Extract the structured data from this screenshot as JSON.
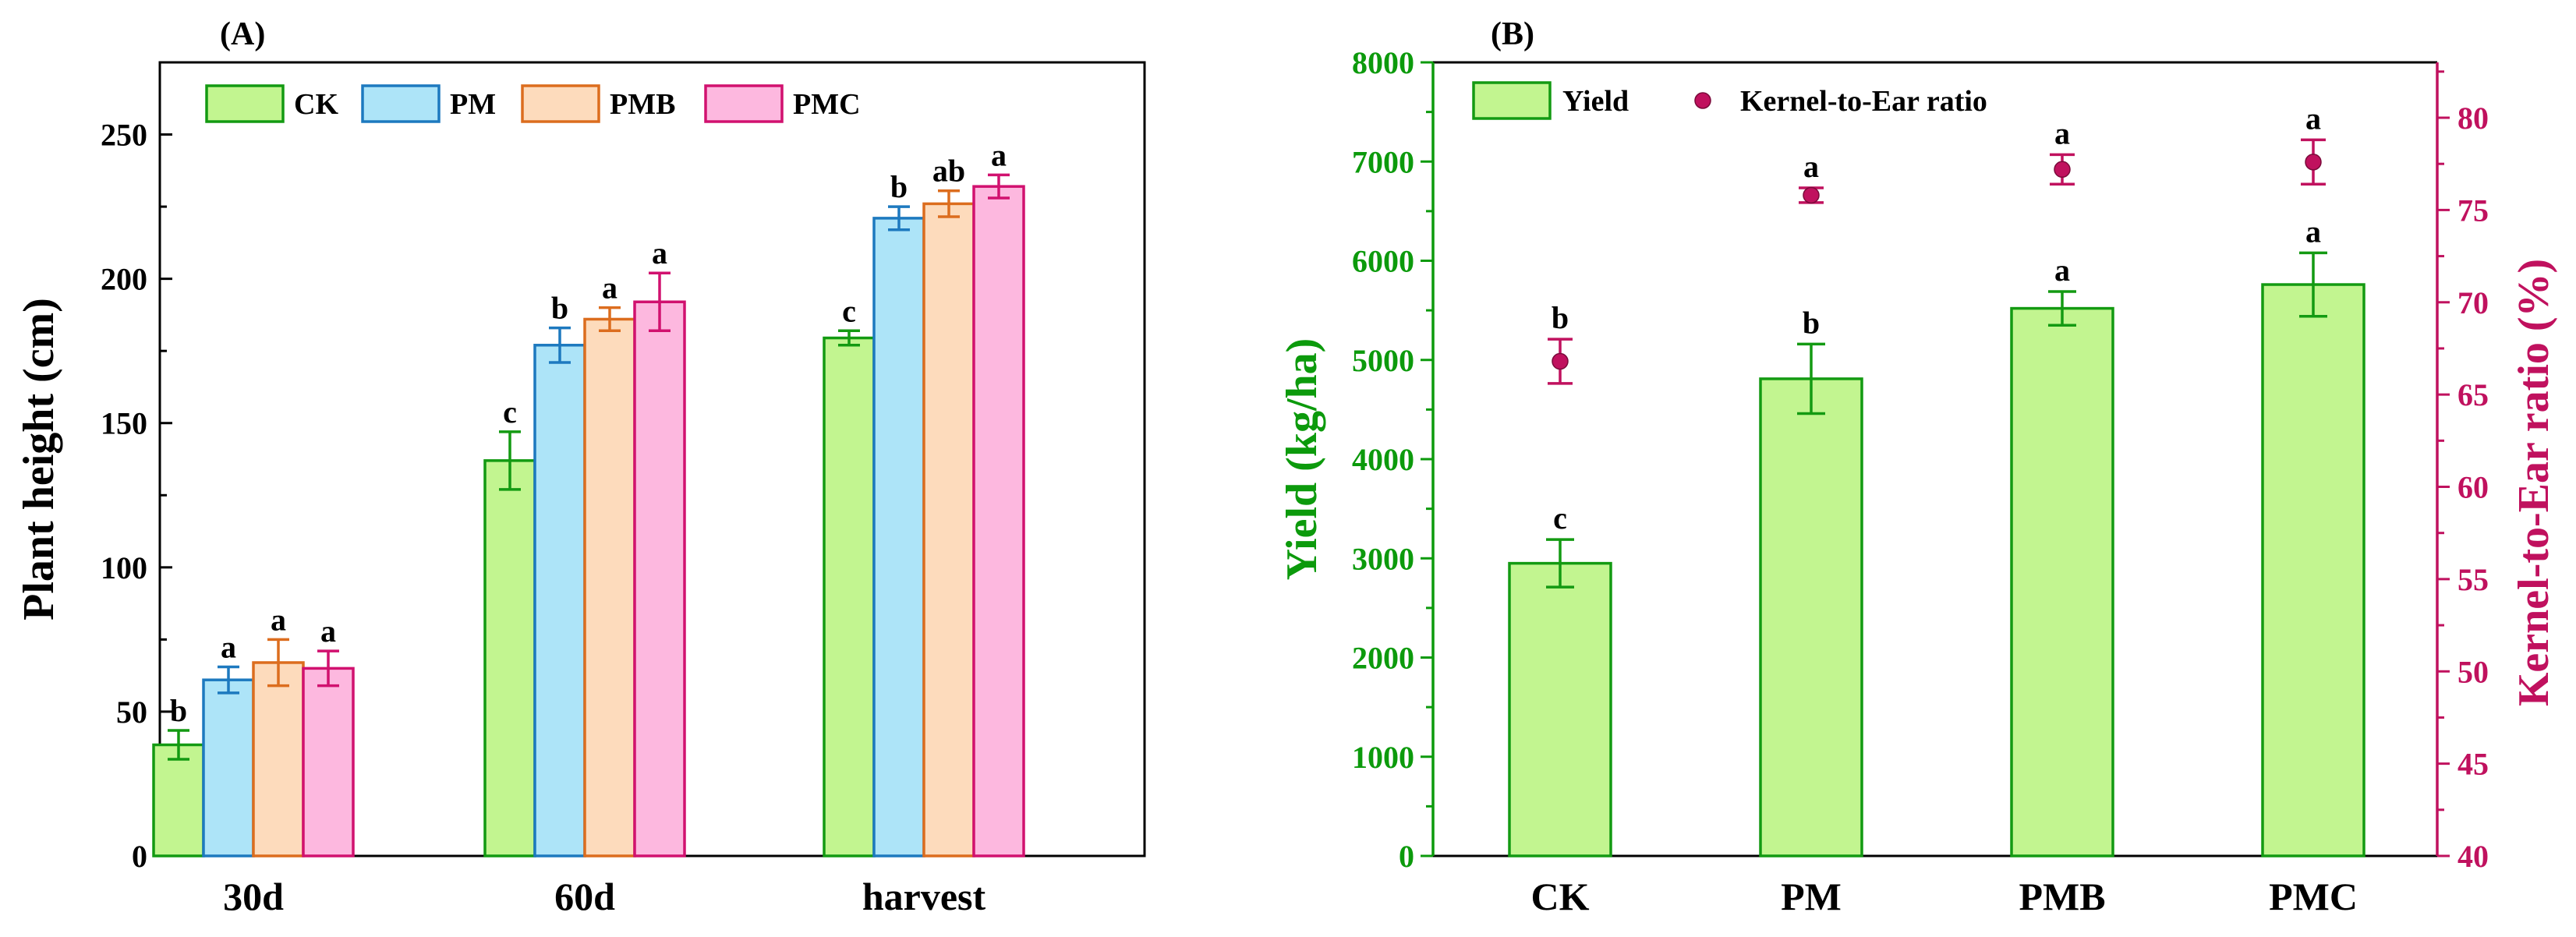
{
  "chart_data": [
    {
      "panel_label": "(A)",
      "type": "bar",
      "title": "",
      "xlabel": "",
      "ylabel": "Plant height (cm)",
      "ylim": [
        0,
        275
      ],
      "yticks": [
        0,
        50,
        100,
        150,
        200,
        250
      ],
      "legend_position": "top-left",
      "categories": [
        "30d",
        "60d",
        "harvest"
      ],
      "series": [
        {
          "name": "CK",
          "values": [
            38.5,
            137,
            179.5
          ],
          "errors": [
            5,
            10,
            2.5
          ],
          "letters": [
            "b",
            "c",
            "c"
          ],
          "fill": "#c2f590",
          "stroke": "#139a12"
        },
        {
          "name": "PM",
          "values": [
            61,
            177,
            221
          ],
          "errors": [
            4.5,
            6,
            4
          ],
          "letters": [
            "a",
            "b",
            "b"
          ],
          "fill": "#ade4f8",
          "stroke": "#1d79bf"
        },
        {
          "name": "PMB",
          "values": [
            67,
            186,
            226
          ],
          "errors": [
            8,
            4,
            4.5
          ],
          "letters": [
            "a",
            "a",
            "ab"
          ],
          "fill": "#fddbbc",
          "stroke": "#dc6d1e"
        },
        {
          "name": "PMC",
          "values": [
            65,
            192,
            232
          ],
          "errors": [
            6,
            10,
            4
          ],
          "letters": [
            "a",
            "a",
            "a"
          ],
          "fill": "#fdb8df",
          "stroke": "#d1116f"
        }
      ]
    },
    {
      "panel_label": "(B)",
      "type": "bar",
      "title": "",
      "xlabel": "",
      "ylabel": "Yield (kg/ha)",
      "ylabel_right": "Kernel-to-Ear ratio (%)",
      "ylim": [
        0,
        8000
      ],
      "yticks": [
        0,
        1000,
        2000,
        3000,
        4000,
        5000,
        6000,
        7000,
        8000
      ],
      "ylim_right": [
        40,
        83
      ],
      "yticks_right": [
        40,
        45,
        50,
        55,
        60,
        65,
        70,
        75,
        80
      ],
      "legend_position": "top-left",
      "categories": [
        "CK",
        "PM",
        "PMB",
        "PMC"
      ],
      "series": [
        {
          "name": "Yield",
          "kind": "bar",
          "axis": "left",
          "values": [
            2950,
            4810,
            5520,
            5760
          ],
          "errors": [
            240,
            350,
            170,
            320
          ],
          "letters": [
            "c",
            "b",
            "a",
            "a"
          ],
          "fill": "#c2f590",
          "stroke": "#139a12"
        },
        {
          "name": "Kernel-to-Ear ratio",
          "kind": "scatter",
          "axis": "right",
          "values": [
            66.8,
            75.8,
            77.2,
            77.6
          ],
          "errors": [
            1.2,
            0.4,
            0.8,
            1.2
          ],
          "letters": [
            "b",
            "a",
            "a",
            "a"
          ],
          "color": "#c0115e"
        }
      ],
      "colors": {
        "left_axis": "#0c9a0c",
        "right_axis": "#c0115e"
      }
    }
  ]
}
